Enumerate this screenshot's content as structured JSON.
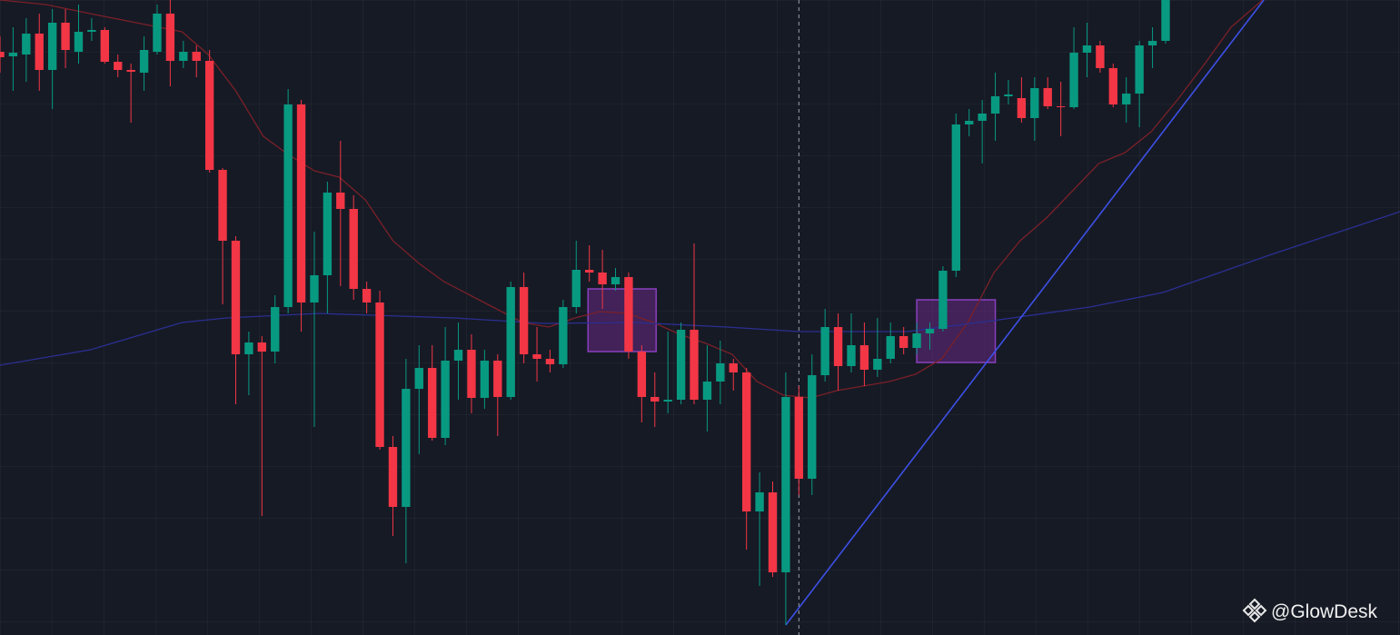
{
  "chart_data": {
    "type": "candlestick",
    "up_color": "#089981",
    "down_color": "#f23645",
    "xlim": [
      0,
      106.9
    ],
    "ylim": [
      1,
      700
    ],
    "x": [
      0,
      1,
      2,
      3,
      4,
      5,
      6,
      7,
      8,
      9,
      10,
      11,
      12,
      13,
      14,
      15,
      16,
      17,
      18,
      19,
      20,
      21,
      22,
      23,
      24,
      25,
      26,
      27,
      28,
      29,
      30,
      31,
      32,
      33,
      34,
      35,
      36,
      37,
      38,
      39,
      40,
      41,
      42,
      43,
      44,
      45,
      46,
      47,
      48,
      49,
      50,
      51,
      52,
      53,
      54,
      55,
      56,
      57,
      58,
      59,
      60,
      61,
      62,
      63,
      64,
      65,
      66,
      67,
      68,
      69,
      70,
      71,
      72,
      73,
      74,
      75,
      76,
      77,
      78,
      79,
      80,
      81,
      82,
      83,
      84,
      85,
      86,
      87,
      88,
      89
    ],
    "open": [
      643,
      638,
      640,
      663,
      623,
      675,
      643,
      665,
      667,
      632,
      623,
      620,
      643,
      685,
      633,
      643,
      633,
      513,
      435,
      310,
      323,
      313,
      362,
      585,
      367,
      397,
      488,
      470,
      382,
      367,
      208,
      142,
      272,
      295,
      218,
      303,
      315,
      262,
      303,
      263,
      384,
      310,
      305,
      299,
      362,
      403,
      400,
      387,
      395,
      313,
      263,
      258,
      260,
      337,
      260,
      280,
      300,
      290,
      137,
      158,
      70,
      263,
      173,
      287,
      340,
      297,
      320,
      293,
      305,
      330,
      317,
      333,
      338,
      402,
      563,
      567,
      575,
      594,
      592,
      570,
      603,
      583,
      582,
      642,
      650,
      625,
      585,
      597,
      650,
      655
    ],
    "high": [
      660,
      670,
      680,
      685,
      690,
      690,
      695,
      680,
      670,
      640,
      630,
      660,
      695,
      700,
      655,
      650,
      645,
      515,
      440,
      335,
      330,
      375,
      602,
      590,
      445,
      500,
      545,
      485,
      390,
      380,
      220,
      305,
      320,
      320,
      340,
      345,
      332,
      315,
      310,
      390,
      400,
      340,
      315,
      370,
      435,
      430,
      425,
      405,
      400,
      320,
      290,
      335,
      345,
      432,
      320,
      325,
      305,
      295,
      180,
      170,
      290,
      275,
      310,
      360,
      355,
      355,
      345,
      350,
      345,
      340,
      345,
      345,
      407,
      575,
      580,
      590,
      620,
      612,
      615,
      615,
      615,
      610,
      670,
      675,
      655,
      630,
      615,
      655,
      670,
      700
    ],
    "low": [
      620,
      600,
      610,
      600,
      580,
      625,
      630,
      655,
      630,
      615,
      565,
      600,
      640,
      605,
      625,
      615,
      510,
      365,
      255,
      265,
      132,
      300,
      355,
      335,
      230,
      355,
      385,
      370,
      355,
      205,
      110,
      80,
      200,
      215,
      210,
      260,
      245,
      250,
      220,
      260,
      300,
      280,
      290,
      295,
      355,
      390,
      360,
      380,
      305,
      235,
      230,
      245,
      255,
      255,
      225,
      255,
      270,
      95,
      55,
      65,
      12,
      155,
      155,
      280,
      270,
      290,
      275,
      285,
      300,
      310,
      310,
      315,
      335,
      395,
      550,
      520,
      545,
      585,
      565,
      545,
      580,
      550,
      580,
      615,
      620,
      582,
      565,
      560,
      625,
      652
    ],
    "close": [
      637,
      642,
      663,
      623,
      675,
      645,
      665,
      667,
      632,
      623,
      621,
      645,
      685,
      633,
      643,
      633,
      513,
      435,
      310,
      323,
      313,
      362,
      585,
      367,
      397,
      488,
      470,
      382,
      367,
      208,
      142,
      272,
      295,
      218,
      303,
      315,
      262,
      303,
      263,
      384,
      310,
      305,
      299,
      362,
      403,
      400,
      387,
      395,
      313,
      263,
      258,
      260,
      337,
      260,
      280,
      300,
      290,
      137,
      158,
      70,
      263,
      173,
      287,
      340,
      297,
      320,
      293,
      305,
      330,
      317,
      333,
      338,
      402,
      563,
      567,
      575,
      594,
      596,
      570,
      603,
      583,
      582,
      642,
      650,
      625,
      585,
      597,
      650,
      655,
      700
    ],
    "lines": [
      {
        "color": "#7a2028",
        "x": [
          0,
          3.5,
          6.9,
          10.4,
          13.9,
          15.9,
          18.0,
          20.1,
          22.0,
          24.0,
          25.9,
          27.9,
          30.0,
          32.0,
          33.9,
          35.9,
          37.9,
          39.9,
          41.9,
          43.9,
          45.8,
          47.9,
          49.9,
          51.9,
          53.9,
          55.9,
          57.8,
          59.8,
          61.9,
          63.9,
          65.9,
          67.9,
          69.9,
          71.9,
          73.9,
          75.9,
          77.9,
          79.9,
          81.9,
          83.9,
          85.9,
          87.9,
          89.9,
          92.0,
          94.0,
          96.4
        ],
        "values": [
          700,
          695,
          685,
          675,
          665,
          640,
          600,
          550,
          530,
          512,
          505,
          480,
          435,
          410,
          390,
          375,
          360,
          345,
          340,
          350,
          357,
          355,
          345,
          332,
          322,
          310,
          280,
          265,
          262,
          270,
          275,
          280,
          288,
          305,
          345,
          400,
          435,
          460,
          490,
          520,
          532,
          555,
          590,
          630,
          670,
          700
        ]
      },
      {
        "color": "#2b2f91",
        "x": [
          0,
          6.9,
          13.9,
          17.3,
          24.3,
          34.7,
          41.6,
          48.5,
          55.5,
          61.0,
          69.3,
          76.3,
          83.2,
          88.8,
          97.1,
          106.9
        ],
        "values": [
          298,
          315,
          345,
          350,
          355,
          350,
          344,
          345,
          340,
          335,
          335,
          348,
          362,
          378,
          420,
          467
        ]
      },
      {
        "color": "#3d50e6",
        "x": [
          60.0,
          96.5
        ],
        "values": [
          12,
          700
        ]
      }
    ],
    "boxes": [
      {
        "x": [
          44.9,
          50.1
        ],
        "y": [
          313,
          382
        ]
      },
      {
        "x": [
          70.0,
          76.0
        ],
        "y": [
          301,
          370
        ]
      }
    ],
    "crosshair_x": 61.0
  },
  "watermark": "@GlowDesk"
}
